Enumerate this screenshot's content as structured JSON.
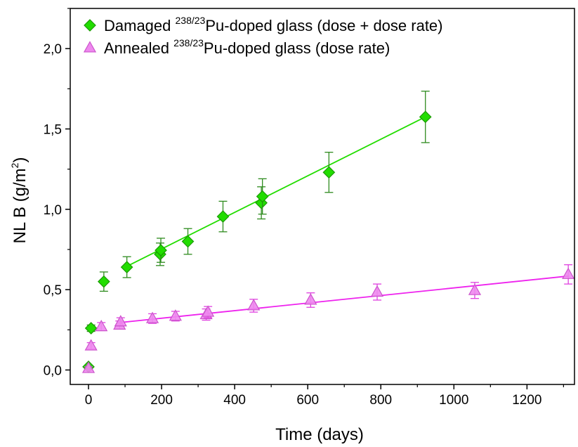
{
  "chart_data": {
    "type": "scatter",
    "xlabel": "Time (days)",
    "ylabel_main": "NL B (g/m",
    "ylabel_sup": "2",
    "ylabel_close": ")",
    "xlim": [
      -50,
      1330
    ],
    "ylim": [
      -0.09,
      2.25
    ],
    "x_ticks": [
      0,
      200,
      400,
      600,
      800,
      1000,
      1200
    ],
    "x_tick_labels": [
      "0",
      "200",
      "400",
      "600",
      "800",
      "1000",
      "1200"
    ],
    "y_ticks": [
      0.0,
      0.5,
      1.0,
      1.5,
      2.0
    ],
    "y_tick_labels": [
      "0,0",
      "0,5",
      "1,0",
      "1,5",
      "2,0"
    ],
    "grid": false,
    "legend_position": "top-left",
    "series": [
      {
        "name_pre": "Damaged ",
        "name_sup": "238/23",
        "name_post": "Pu-doped glass (dose + dose rate)",
        "marker": "diamond",
        "color": "#22dd00",
        "edge_color": "#1a9a00",
        "errbar_color": "#2e8b1e",
        "points": [
          {
            "x": 0,
            "y": 0.02,
            "err": 0
          },
          {
            "x": 7,
            "y": 0.26,
            "err": 0.02
          },
          {
            "x": 42,
            "y": 0.55,
            "err": 0.06
          },
          {
            "x": 105,
            "y": 0.64,
            "err": 0.065
          },
          {
            "x": 196,
            "y": 0.72,
            "err": 0.07
          },
          {
            "x": 198,
            "y": 0.745,
            "err": 0.075
          },
          {
            "x": 272,
            "y": 0.8,
            "err": 0.08
          },
          {
            "x": 368,
            "y": 0.955,
            "err": 0.095
          },
          {
            "x": 473,
            "y": 1.04,
            "err": 0.1
          },
          {
            "x": 476,
            "y": 1.08,
            "err": 0.11
          },
          {
            "x": 658,
            "y": 1.23,
            "err": 0.125
          },
          {
            "x": 922,
            "y": 1.575,
            "err": 0.16
          }
        ],
        "fit": {
          "x": [
            105,
            922
          ],
          "y": [
            0.645,
            1.575
          ]
        }
      },
      {
        "name_pre": "Annealed ",
        "name_sup": "238/23",
        "name_post": "Pu-doped glass (dose rate)",
        "marker": "triangle",
        "color": "#ee88ee",
        "edge_color": "#cc55cc",
        "errbar_color": "#e040e0",
        "points": [
          {
            "x": 0,
            "y": 0.01,
            "err": 0.01
          },
          {
            "x": 7,
            "y": 0.15,
            "err": 0.02
          },
          {
            "x": 35,
            "y": 0.27,
            "err": 0.025
          },
          {
            "x": 85,
            "y": 0.28,
            "err": 0.025
          },
          {
            "x": 88,
            "y": 0.3,
            "err": 0.025
          },
          {
            "x": 175,
            "y": 0.32,
            "err": 0.03
          },
          {
            "x": 238,
            "y": 0.335,
            "err": 0.03
          },
          {
            "x": 322,
            "y": 0.345,
            "err": 0.035
          },
          {
            "x": 327,
            "y": 0.36,
            "err": 0.035
          },
          {
            "x": 452,
            "y": 0.4,
            "err": 0.04
          },
          {
            "x": 608,
            "y": 0.435,
            "err": 0.045
          },
          {
            "x": 790,
            "y": 0.485,
            "err": 0.05
          },
          {
            "x": 1057,
            "y": 0.495,
            "err": 0.05
          },
          {
            "x": 1313,
            "y": 0.595,
            "err": 0.06
          }
        ],
        "fit": {
          "x": [
            85,
            1315
          ],
          "y": [
            0.295,
            0.585
          ]
        }
      }
    ]
  }
}
